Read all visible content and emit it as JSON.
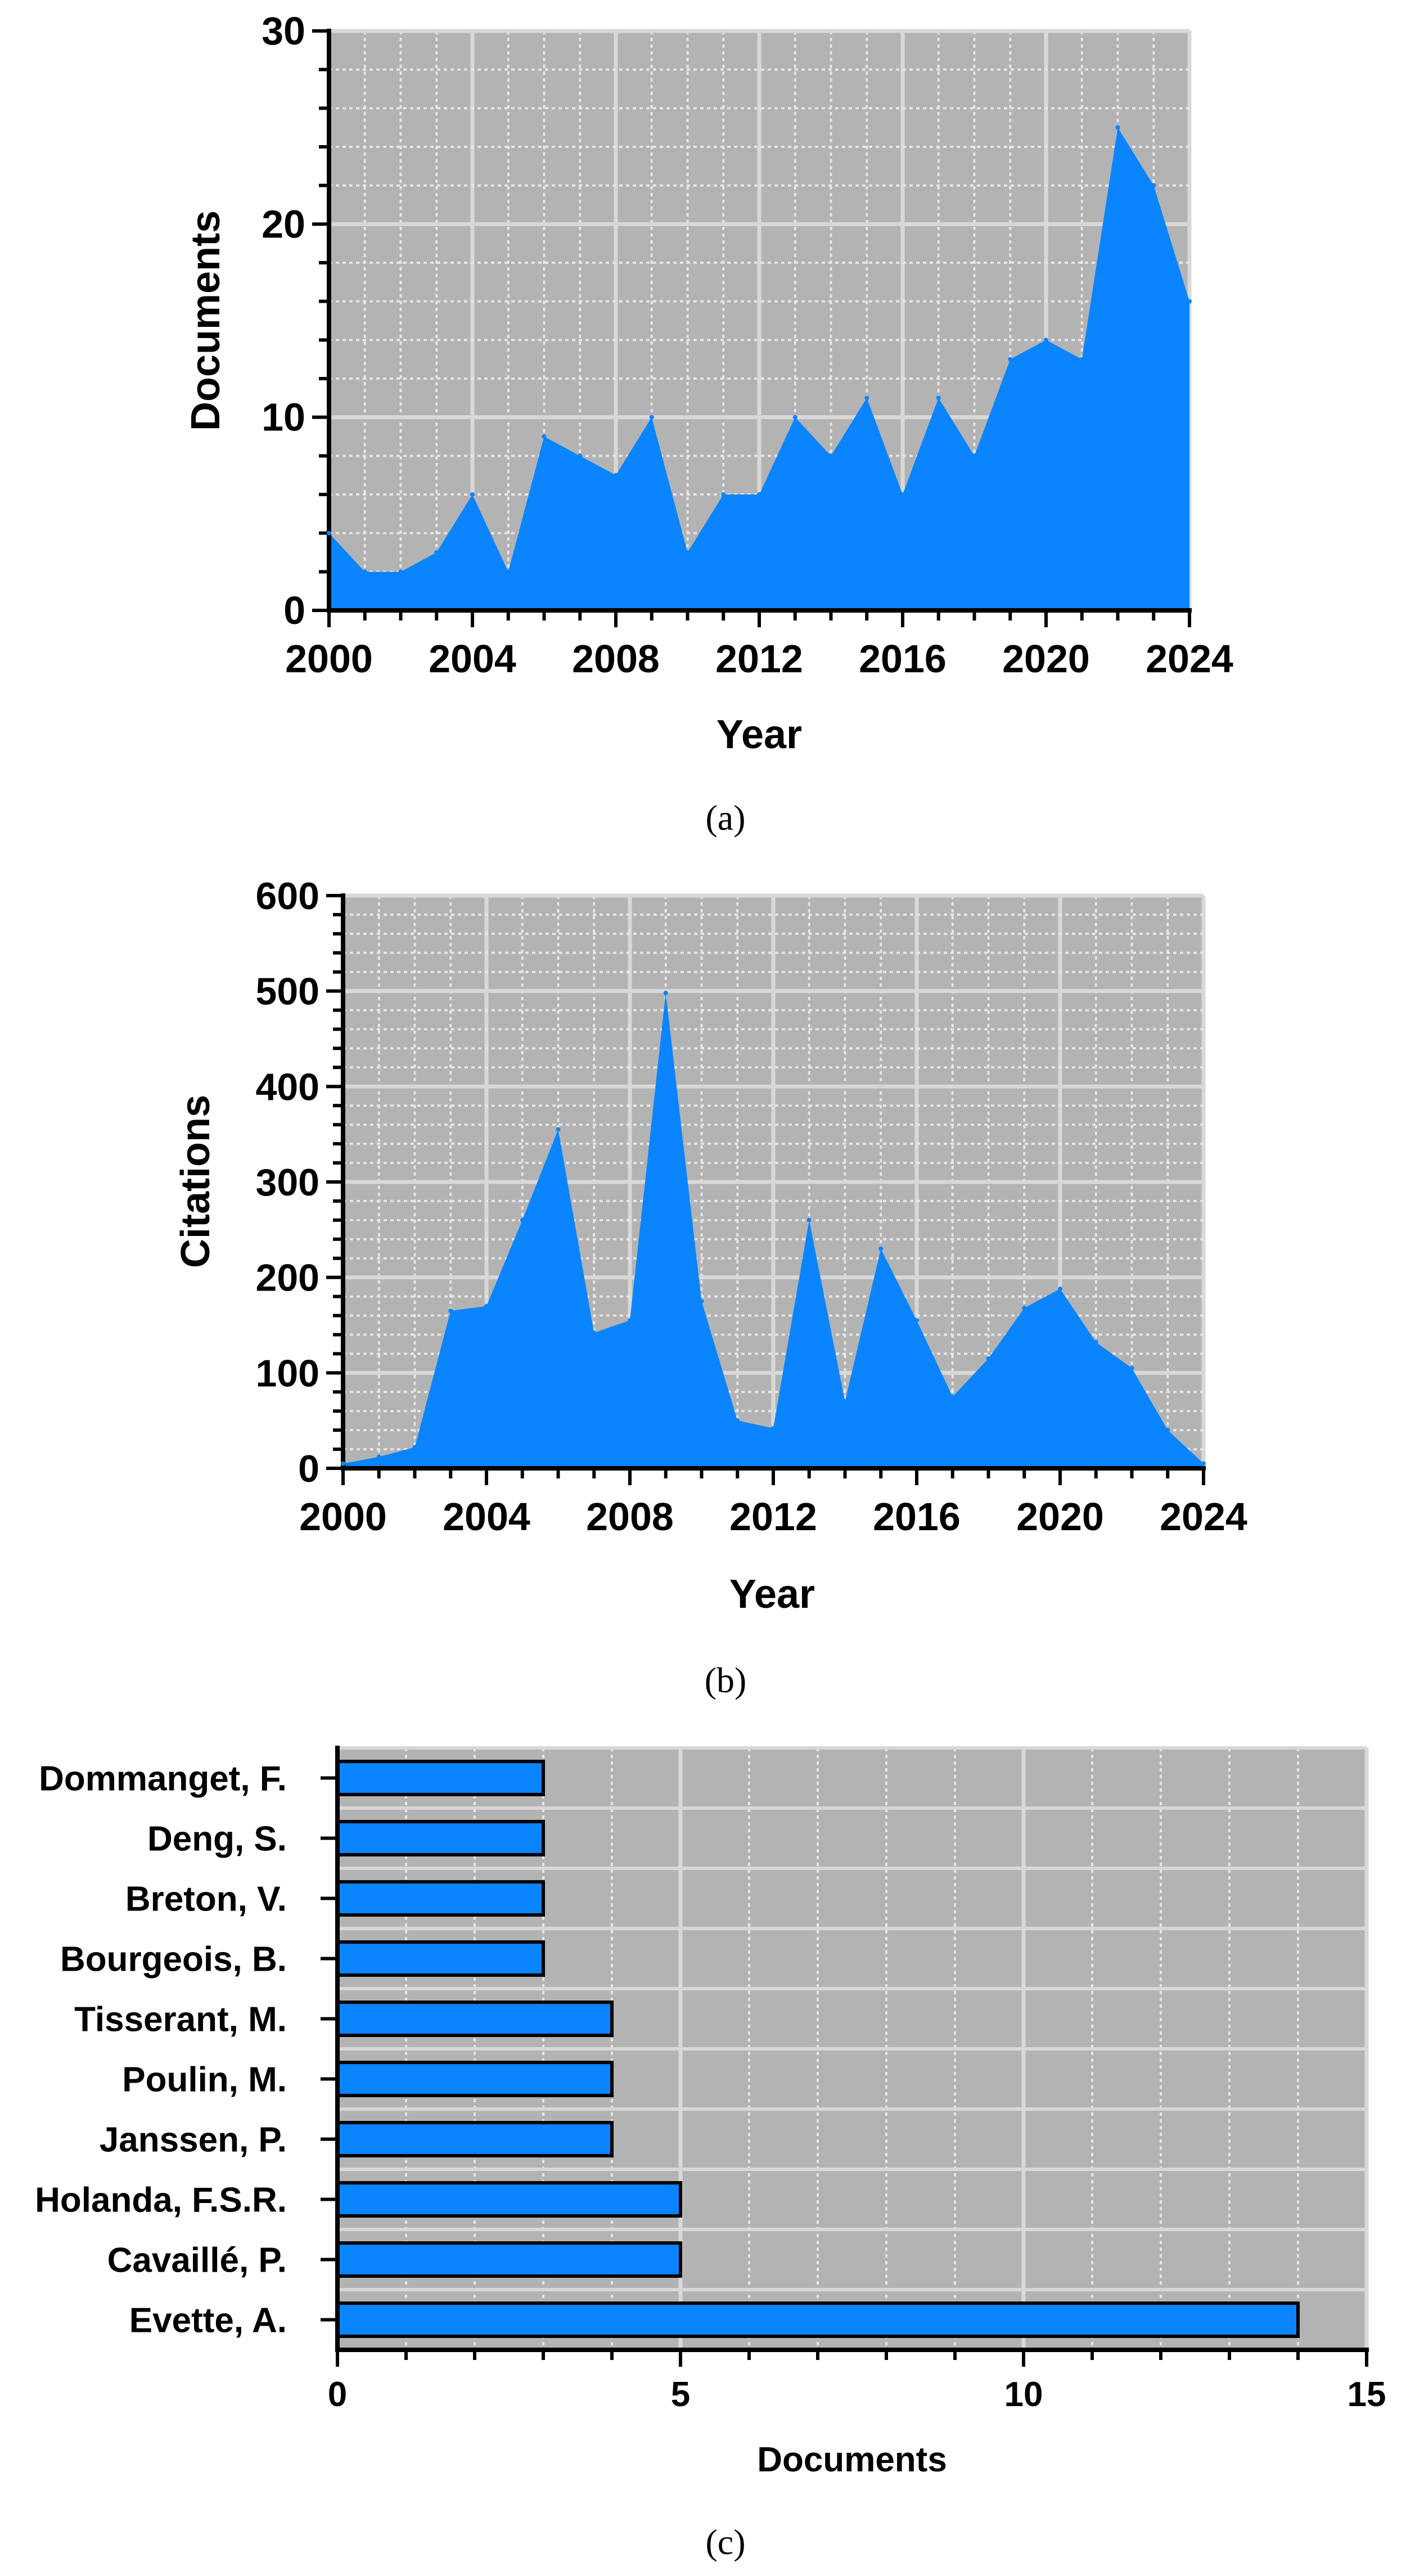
{
  "colors": {
    "plot_bg": "#b3b3b3",
    "grid_major": "#d8d8d8",
    "grid_minor": "#e6e6e6",
    "fill": "#0a84ff",
    "bar_edge": "#000000"
  },
  "chart_data": [
    {
      "type": "area",
      "caption": "(a)",
      "xlabel": "Year",
      "ylabel": "Documents",
      "xlim": [
        2000,
        2024
      ],
      "ylim": [
        0,
        30
      ],
      "xticks": [
        2000,
        2004,
        2008,
        2012,
        2016,
        2020,
        2024
      ],
      "yticks": [
        0,
        10,
        20,
        30
      ],
      "grid": true,
      "x": [
        2000,
        2001,
        2002,
        2003,
        2004,
        2005,
        2006,
        2007,
        2008,
        2009,
        2010,
        2011,
        2012,
        2013,
        2014,
        2015,
        2016,
        2017,
        2018,
        2019,
        2020,
        2021,
        2022,
        2023,
        2024
      ],
      "values": [
        4,
        2,
        2,
        3,
        6,
        2,
        9,
        8,
        7,
        10,
        3,
        6,
        6,
        10,
        8,
        11,
        6,
        11,
        8,
        13,
        14,
        13,
        25,
        22,
        16
      ]
    },
    {
      "type": "area",
      "caption": "(b)",
      "xlabel": "Year",
      "ylabel": "Citations",
      "xlim": [
        2000,
        2024
      ],
      "ylim": [
        0,
        600
      ],
      "xticks": [
        2000,
        2004,
        2008,
        2012,
        2016,
        2020,
        2024
      ],
      "yticks": [
        0,
        100,
        200,
        300,
        400,
        500,
        600
      ],
      "grid": true,
      "x": [
        2000,
        2001,
        2002,
        2003,
        2004,
        2005,
        2006,
        2007,
        2008,
        2009,
        2010,
        2011,
        2012,
        2013,
        2014,
        2015,
        2016,
        2017,
        2018,
        2019,
        2020,
        2021,
        2022,
        2023,
        2024
      ],
      "values": [
        5,
        12,
        22,
        165,
        170,
        260,
        355,
        142,
        155,
        498,
        175,
        50,
        42,
        260,
        70,
        230,
        155,
        75,
        115,
        168,
        188,
        132,
        105,
        40,
        5
      ]
    },
    {
      "type": "bar",
      "orientation": "horizontal",
      "caption": "(c)",
      "xlabel": "Documents",
      "xlim": [
        0,
        15
      ],
      "xticks": [
        0,
        5,
        10,
        15
      ],
      "grid": true,
      "categories": [
        "Dommanget, F.",
        "Deng, S.",
        "Breton, V.",
        "Bourgeois, B.",
        "Tisserant, M.",
        "Poulin, M.",
        "Janssen, P.",
        "Holanda, F.S.R.",
        "Cavaillé, P.",
        "Evette, A."
      ],
      "values": [
        3,
        3,
        3,
        3,
        4,
        4,
        4,
        5,
        5,
        14
      ]
    }
  ]
}
